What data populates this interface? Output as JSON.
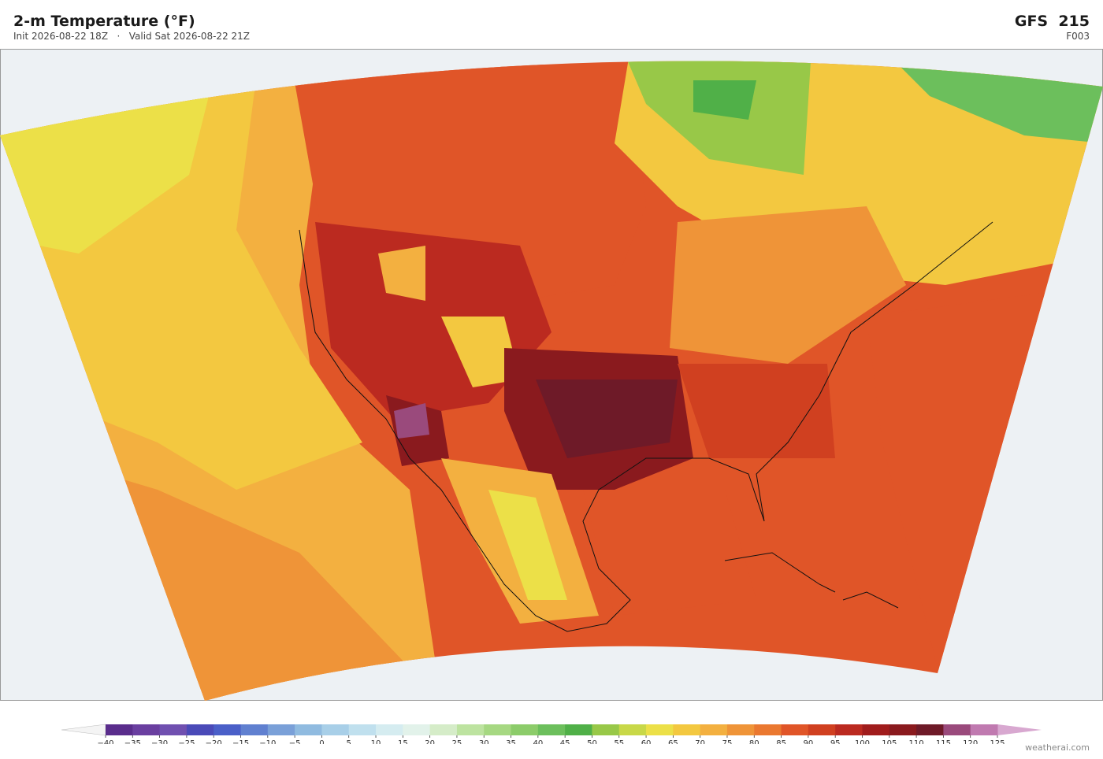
{
  "header": {
    "title": "2-m Temperature  (°F)",
    "subtitle": "Init 2026-08-22 18Z   ·   Valid Sat 2026-08-22 21Z",
    "model": "GFS  215",
    "forecast_hour": "F003"
  },
  "colorbar": {
    "ticks": [
      "−40",
      "−35",
      "−30",
      "−25",
      "−20",
      "−15",
      "−10",
      "−5",
      "0",
      "5",
      "10",
      "15",
      "20",
      "25",
      "30",
      "35",
      "40",
      "45",
      "50",
      "55",
      "60",
      "65",
      "70",
      "75",
      "80",
      "85",
      "90",
      "95",
      "100",
      "105",
      "110",
      "115",
      "120",
      "125"
    ],
    "colors": [
      "#5a2d8c",
      "#6a3fa0",
      "#7050b0",
      "#4a4ab8",
      "#4a5fc8",
      "#6080d0",
      "#7aa0d8",
      "#90bbe0",
      "#a8cfe8",
      "#c0e0ee",
      "#d5ecf0",
      "#e2f2ea",
      "#d5ecc8",
      "#bde3a0",
      "#a6d882",
      "#8ccc6a",
      "#6cbf5c",
      "#50b048",
      "#98c848",
      "#c8d848",
      "#ece048",
      "#f3c840",
      "#f3b040",
      "#ef9438",
      "#ea7830",
      "#e05528",
      "#d04020",
      "#bb2a20",
      "#a01c1c",
      "#8a1a1e",
      "#6e1a28",
      "#9a4a7c",
      "#c07ab0"
    ],
    "under_color": "#f4f4f4",
    "over_color": "#d8a8d0"
  },
  "credit": "weatherai.com"
}
